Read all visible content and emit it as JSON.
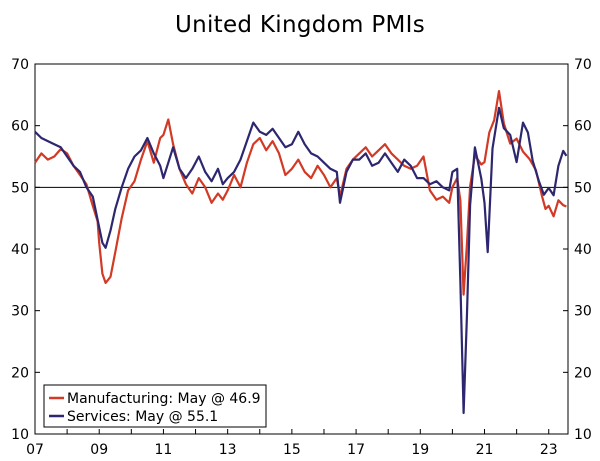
{
  "chart_data": {
    "type": "line",
    "title": "United Kingdom PMIs",
    "xlabel": "",
    "ylabel": "",
    "ylim": [
      10,
      70
    ],
    "y_ticks": [
      10,
      20,
      30,
      40,
      50,
      60,
      70
    ],
    "xlim": [
      2007.0,
      2023.6
    ],
    "x_ticks": [
      {
        "pos": 2007,
        "label": "07"
      },
      {
        "pos": 2009,
        "label": "09"
      },
      {
        "pos": 2011,
        "label": "11"
      },
      {
        "pos": 2013,
        "label": "13"
      },
      {
        "pos": 2015,
        "label": "15"
      },
      {
        "pos": 2017,
        "label": "17"
      },
      {
        "pos": 2019,
        "label": "19"
      },
      {
        "pos": 2021,
        "label": "21"
      },
      {
        "pos": 2023,
        "label": "23"
      }
    ],
    "reference_line": 50,
    "legend_position": "bottom-left",
    "series": [
      {
        "name": "Manufacturing: May @ 46.9",
        "color": "#d23a25",
        "points": [
          [
            2007.0,
            54.0
          ],
          [
            2007.2,
            55.5
          ],
          [
            2007.4,
            54.5
          ],
          [
            2007.6,
            55.0
          ],
          [
            2007.8,
            56.2
          ],
          [
            2008.0,
            55.5
          ],
          [
            2008.2,
            53.5
          ],
          [
            2008.4,
            52.0
          ],
          [
            2008.6,
            50.5
          ],
          [
            2008.8,
            47.0
          ],
          [
            2008.95,
            44.5
          ],
          [
            2009.0,
            41.0
          ],
          [
            2009.1,
            36.0
          ],
          [
            2009.2,
            34.5
          ],
          [
            2009.35,
            35.5
          ],
          [
            2009.5,
            39.5
          ],
          [
            2009.7,
            45.0
          ],
          [
            2009.9,
            49.5
          ],
          [
            2010.1,
            51.0
          ],
          [
            2010.3,
            54.5
          ],
          [
            2010.5,
            57.5
          ],
          [
            2010.7,
            54.0
          ],
          [
            2010.9,
            58.0
          ],
          [
            2011.0,
            58.5
          ],
          [
            2011.15,
            61.0
          ],
          [
            2011.3,
            57.0
          ],
          [
            2011.5,
            53.0
          ],
          [
            2011.7,
            50.5
          ],
          [
            2011.9,
            49.0
          ],
          [
            2012.1,
            51.5
          ],
          [
            2012.3,
            50.0
          ],
          [
            2012.5,
            47.5
          ],
          [
            2012.7,
            49.0
          ],
          [
            2012.85,
            48.0
          ],
          [
            2013.0,
            49.5
          ],
          [
            2013.2,
            52.0
          ],
          [
            2013.4,
            50.0
          ],
          [
            2013.6,
            54.0
          ],
          [
            2013.8,
            57.0
          ],
          [
            2014.0,
            58.0
          ],
          [
            2014.2,
            56.0
          ],
          [
            2014.4,
            57.5
          ],
          [
            2014.6,
            55.5
          ],
          [
            2014.8,
            52.0
          ],
          [
            2015.0,
            53.0
          ],
          [
            2015.2,
            54.5
          ],
          [
            2015.4,
            52.5
          ],
          [
            2015.6,
            51.5
          ],
          [
            2015.8,
            53.5
          ],
          [
            2016.0,
            52.0
          ],
          [
            2016.2,
            50.0
          ],
          [
            2016.4,
            51.5
          ],
          [
            2016.5,
            48.5
          ],
          [
            2016.7,
            53.0
          ],
          [
            2016.9,
            54.5
          ],
          [
            2017.1,
            55.5
          ],
          [
            2017.3,
            56.5
          ],
          [
            2017.5,
            55.0
          ],
          [
            2017.7,
            56.0
          ],
          [
            2017.9,
            57.0
          ],
          [
            2018.1,
            55.5
          ],
          [
            2018.3,
            54.5
          ],
          [
            2018.5,
            53.5
          ],
          [
            2018.7,
            53.0
          ],
          [
            2018.9,
            53.5
          ],
          [
            2019.1,
            55.0
          ],
          [
            2019.3,
            49.5
          ],
          [
            2019.5,
            48.0
          ],
          [
            2019.7,
            48.5
          ],
          [
            2019.9,
            47.5
          ],
          [
            2020.0,
            50.0
          ],
          [
            2020.15,
            51.5
          ],
          [
            2020.25,
            47.8
          ],
          [
            2020.35,
            32.6
          ],
          [
            2020.45,
            40.7
          ],
          [
            2020.55,
            50.1
          ],
          [
            2020.7,
            55.2
          ],
          [
            2020.9,
            53.7
          ],
          [
            2021.0,
            54.1
          ],
          [
            2021.15,
            58.9
          ],
          [
            2021.3,
            60.9
          ],
          [
            2021.45,
            65.6
          ],
          [
            2021.6,
            60.4
          ],
          [
            2021.8,
            57.1
          ],
          [
            2022.0,
            57.9
          ],
          [
            2022.2,
            55.8
          ],
          [
            2022.4,
            54.6
          ],
          [
            2022.6,
            52.8
          ],
          [
            2022.8,
            48.4
          ],
          [
            2022.9,
            46.5
          ],
          [
            2023.0,
            47.0
          ],
          [
            2023.15,
            45.3
          ],
          [
            2023.3,
            47.9
          ],
          [
            2023.45,
            47.1
          ],
          [
            2023.55,
            46.9
          ]
        ]
      },
      {
        "name": "Services: May @ 55.1",
        "color": "#2d2770",
        "points": [
          [
            2007.0,
            59.0
          ],
          [
            2007.2,
            58.0
          ],
          [
            2007.4,
            57.5
          ],
          [
            2007.6,
            57.0
          ],
          [
            2007.8,
            56.5
          ],
          [
            2008.0,
            55.0
          ],
          [
            2008.2,
            53.5
          ],
          [
            2008.4,
            52.5
          ],
          [
            2008.6,
            50.0
          ],
          [
            2008.8,
            48.5
          ],
          [
            2009.0,
            43.5
          ],
          [
            2009.1,
            41.0
          ],
          [
            2009.2,
            40.2
          ],
          [
            2009.35,
            43.0
          ],
          [
            2009.5,
            46.5
          ],
          [
            2009.7,
            50.0
          ],
          [
            2009.9,
            53.0
          ],
          [
            2010.1,
            55.0
          ],
          [
            2010.3,
            56.0
          ],
          [
            2010.5,
            58.0
          ],
          [
            2010.7,
            55.5
          ],
          [
            2010.9,
            53.5
          ],
          [
            2011.0,
            51.5
          ],
          [
            2011.15,
            54.0
          ],
          [
            2011.3,
            56.5
          ],
          [
            2011.5,
            53.0
          ],
          [
            2011.7,
            51.5
          ],
          [
            2011.9,
            53.0
          ],
          [
            2012.1,
            55.0
          ],
          [
            2012.3,
            52.5
          ],
          [
            2012.5,
            51.0
          ],
          [
            2012.7,
            53.0
          ],
          [
            2012.85,
            50.5
          ],
          [
            2013.0,
            51.5
          ],
          [
            2013.2,
            52.5
          ],
          [
            2013.4,
            54.5
          ],
          [
            2013.6,
            57.5
          ],
          [
            2013.8,
            60.5
          ],
          [
            2014.0,
            59.0
          ],
          [
            2014.2,
            58.5
          ],
          [
            2014.4,
            59.5
          ],
          [
            2014.6,
            58.0
          ],
          [
            2014.8,
            56.5
          ],
          [
            2015.0,
            57.0
          ],
          [
            2015.2,
            59.0
          ],
          [
            2015.4,
            57.0
          ],
          [
            2015.6,
            55.5
          ],
          [
            2015.8,
            55.0
          ],
          [
            2016.0,
            54.0
          ],
          [
            2016.2,
            53.0
          ],
          [
            2016.4,
            52.5
          ],
          [
            2016.5,
            47.5
          ],
          [
            2016.7,
            52.5
          ],
          [
            2016.9,
            54.5
          ],
          [
            2017.1,
            54.5
          ],
          [
            2017.3,
            55.5
          ],
          [
            2017.5,
            53.5
          ],
          [
            2017.7,
            54.0
          ],
          [
            2017.9,
            55.5
          ],
          [
            2018.1,
            54.0
          ],
          [
            2018.3,
            52.5
          ],
          [
            2018.5,
            54.5
          ],
          [
            2018.7,
            53.5
          ],
          [
            2018.9,
            51.5
          ],
          [
            2019.1,
            51.5
          ],
          [
            2019.3,
            50.5
          ],
          [
            2019.5,
            51.0
          ],
          [
            2019.7,
            50.0
          ],
          [
            2019.9,
            49.5
          ],
          [
            2020.0,
            52.5
          ],
          [
            2020.15,
            53.0
          ],
          [
            2020.25,
            34.5
          ],
          [
            2020.35,
            13.4
          ],
          [
            2020.45,
            29.0
          ],
          [
            2020.55,
            47.1
          ],
          [
            2020.7,
            56.5
          ],
          [
            2020.9,
            51.4
          ],
          [
            2021.0,
            47.5
          ],
          [
            2021.1,
            39.5
          ],
          [
            2021.25,
            56.3
          ],
          [
            2021.45,
            62.9
          ],
          [
            2021.6,
            59.6
          ],
          [
            2021.8,
            58.5
          ],
          [
            2022.0,
            54.1
          ],
          [
            2022.2,
            60.5
          ],
          [
            2022.35,
            58.9
          ],
          [
            2022.5,
            54.3
          ],
          [
            2022.7,
            50.9
          ],
          [
            2022.85,
            48.8
          ],
          [
            2023.0,
            49.9
          ],
          [
            2023.15,
            48.7
          ],
          [
            2023.3,
            53.5
          ],
          [
            2023.45,
            55.9
          ],
          [
            2023.55,
            55.1
          ]
        ]
      }
    ]
  }
}
